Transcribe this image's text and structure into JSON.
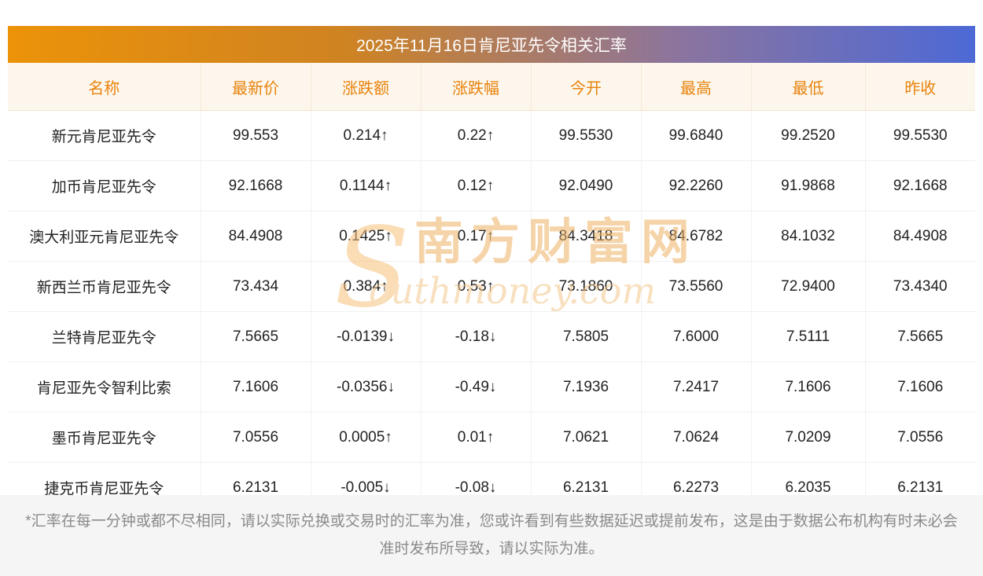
{
  "page_title": "2025年11月16日肯尼亚先令相关汇率",
  "chart_data": {
    "type": "table",
    "title": "2025年11月16日肯尼亚先令相关汇率",
    "columns": [
      "名称",
      "最新价",
      "涨跌额",
      "涨跌幅",
      "今开",
      "最高",
      "最低",
      "昨收"
    ],
    "rows": [
      {
        "name": "新元肯尼亚先令",
        "latest": "99.553",
        "change": "0.214",
        "pct": "0.22",
        "direction": "up",
        "open": "99.5530",
        "high": "99.6840",
        "low": "99.2520",
        "prev_close": "99.5530"
      },
      {
        "name": "加币肯尼亚先令",
        "latest": "92.1668",
        "change": "0.1144",
        "pct": "0.12",
        "direction": "up",
        "open": "92.0490",
        "high": "92.2260",
        "low": "91.9868",
        "prev_close": "92.1668"
      },
      {
        "name": "澳大利亚元肯尼亚先令",
        "latest": "84.4908",
        "change": "0.1425",
        "pct": "0.17",
        "direction": "up",
        "open": "84.3418",
        "high": "84.6782",
        "low": "84.1032",
        "prev_close": "84.4908"
      },
      {
        "name": "新西兰币肯尼亚先令",
        "latest": "73.434",
        "change": "0.384",
        "pct": "0.53",
        "direction": "up",
        "open": "73.1860",
        "high": "73.5560",
        "low": "72.9400",
        "prev_close": "73.4340"
      },
      {
        "name": "兰特肯尼亚先令",
        "latest": "7.5665",
        "change": "-0.0139",
        "pct": "-0.18",
        "direction": "down",
        "open": "7.5805",
        "high": "7.6000",
        "low": "7.5111",
        "prev_close": "7.5665"
      },
      {
        "name": "肯尼亚先令智利比索",
        "latest": "7.1606",
        "change": "-0.0356",
        "pct": "-0.49",
        "direction": "down",
        "open": "7.1936",
        "high": "7.2417",
        "low": "7.1606",
        "prev_close": "7.1606"
      },
      {
        "name": "墨币肯尼亚先令",
        "latest": "7.0556",
        "change": "0.0005",
        "pct": "0.01",
        "direction": "up",
        "open": "7.0621",
        "high": "7.0624",
        "low": "7.0209",
        "prev_close": "7.0556"
      },
      {
        "name": "捷克币肯尼亚先令",
        "latest": "6.2131",
        "change": "-0.005",
        "pct": "-0.08",
        "direction": "down",
        "open": "6.2131",
        "high": "6.2273",
        "low": "6.2035",
        "prev_close": "6.2131"
      }
    ]
  },
  "arrows": {
    "up": "↑",
    "down": "↓"
  },
  "colors": {
    "up": "#e60000",
    "down": "#009900",
    "header_text": "#e8830d",
    "header_bg": "#fdf6ec",
    "title_gradient_left": "#ec9309",
    "title_gradient_right": "#4d69d6"
  },
  "watermark": {
    "logo_letter": "S",
    "site_name_cn": "南方财富网",
    "site_name_en_rest": "outhmoney.com"
  },
  "footer_note": "*汇率在每一分钟或都不尽相同，请以实际兑换或交易时的汇率为准，您或许看到有些数据延迟或提前发布，这是由于数据公布机构有时未必会准时发布所导致，请以实际为准。"
}
